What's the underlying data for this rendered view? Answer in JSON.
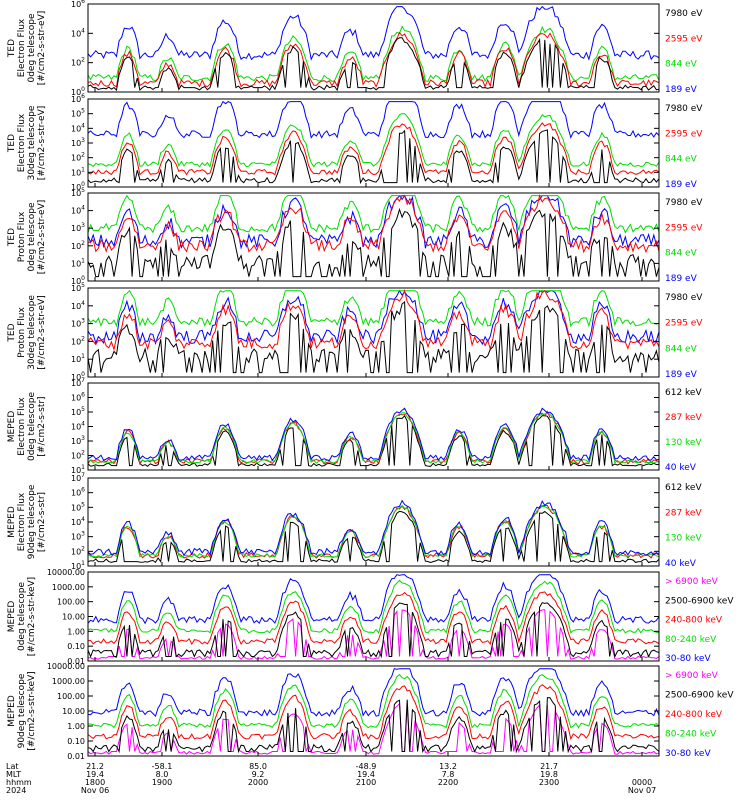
{
  "colors": {
    "blue": "#0000ff",
    "red": "#ff0000",
    "green": "#00dd00",
    "black": "#000000",
    "magenta": "#ff00ff",
    "axis": "#000000"
  },
  "chart_data": [
    {
      "type": "line",
      "ylabel_lines": [
        "TED",
        "Electron Flux",
        "0deg telescope",
        "[#/cm2-s-str-eV]"
      ],
      "yscale": "log",
      "ylim": [
        1,
        1000000
      ],
      "yticks": [
        "10^0",
        "10^2",
        "10^4",
        "10^6"
      ],
      "series": [
        {
          "name": "7980 eV",
          "color": "black"
        },
        {
          "name": "2595 eV",
          "color": "red"
        },
        {
          "name": "844 eV",
          "color": "green"
        },
        {
          "name": "189 eV",
          "color": "blue"
        }
      ]
    },
    {
      "type": "line",
      "ylabel_lines": [
        "TED",
        "Electron Flux",
        "30deg telescope",
        "[#/cm2-s-str-eV]"
      ],
      "yscale": "log",
      "ylim": [
        1,
        1000000
      ],
      "yticks": [
        "10^0",
        "10^1",
        "10^2",
        "10^3",
        "10^4",
        "10^5",
        "10^6"
      ],
      "series": [
        {
          "name": "7980 eV",
          "color": "black"
        },
        {
          "name": "2595 eV",
          "color": "red"
        },
        {
          "name": "844 eV",
          "color": "green"
        },
        {
          "name": "189 eV",
          "color": "blue"
        }
      ]
    },
    {
      "type": "line",
      "ylabel_lines": [
        "TED",
        "Proton Flux",
        "0deg telescope",
        "[#/cm2-s-str-eV]"
      ],
      "yscale": "log",
      "ylim": [
        1,
        100000
      ],
      "yticks": [
        "10^0",
        "10^1",
        "10^2",
        "10^3",
        "10^4",
        "10^5"
      ],
      "series": [
        {
          "name": "7980 eV",
          "color": "black"
        },
        {
          "name": "2595 eV",
          "color": "red"
        },
        {
          "name": "844 eV",
          "color": "green"
        },
        {
          "name": "189 eV",
          "color": "blue"
        }
      ]
    },
    {
      "type": "line",
      "ylabel_lines": [
        "TED",
        "Proton Flux",
        "30deg telescope",
        "[#/cm2-s-str-eV]"
      ],
      "yscale": "log",
      "ylim": [
        1,
        100000
      ],
      "yticks": [
        "10^0",
        "10^1",
        "10^2",
        "10^3",
        "10^4",
        "10^5"
      ],
      "series": [
        {
          "name": "7980 eV",
          "color": "black"
        },
        {
          "name": "2595 eV",
          "color": "red"
        },
        {
          "name": "844 eV",
          "color": "green"
        },
        {
          "name": "189 eV",
          "color": "blue"
        }
      ]
    },
    {
      "type": "line",
      "ylabel_lines": [
        "MEPED",
        "Electron Flux",
        "0deg telescope",
        "[#/cm2-s-str]"
      ],
      "yscale": "log",
      "ylim": [
        10,
        10000000
      ],
      "yticks": [
        "10^1",
        "10^2",
        "10^3",
        "10^4",
        "10^5",
        "10^6",
        "10^7"
      ],
      "series": [
        {
          "name": "612 keV",
          "color": "black"
        },
        {
          "name": "287 keV",
          "color": "red"
        },
        {
          "name": "130 keV",
          "color": "green"
        },
        {
          "name": "40 keV",
          "color": "blue"
        }
      ]
    },
    {
      "type": "line",
      "ylabel_lines": [
        "MEPED",
        "Electron Flux",
        "90deg telescope",
        "[#/cm2-s-str]"
      ],
      "yscale": "log",
      "ylim": [
        10,
        10000000
      ],
      "yticks": [
        "10^1",
        "10^2",
        "10^3",
        "10^4",
        "10^5",
        "10^6",
        "10^7"
      ],
      "series": [
        {
          "name": "612 keV",
          "color": "black"
        },
        {
          "name": "287 keV",
          "color": "red"
        },
        {
          "name": "130 keV",
          "color": "green"
        },
        {
          "name": "40 keV",
          "color": "blue"
        }
      ]
    },
    {
      "type": "line",
      "ylabel_lines": [
        "MEPED",
        "0deg telescope",
        "[#/cm2-s-str-keV]"
      ],
      "yscale": "log",
      "ylim": [
        0.01,
        10000
      ],
      "yticks": [
        "0.01",
        "0.10",
        "1.00",
        "10.00",
        "100.00",
        "1000.00",
        "10000.00"
      ],
      "series": [
        {
          "name": "> 6900 keV",
          "color": "magenta"
        },
        {
          "name": "2500-6900 keV",
          "color": "black"
        },
        {
          "name": "240-800 keV",
          "color": "red"
        },
        {
          "name": "80-240 keV",
          "color": "green"
        },
        {
          "name": "30-80 keV",
          "color": "blue"
        }
      ]
    },
    {
      "type": "line",
      "ylabel_lines": [
        "MEPED",
        "90deg telescope",
        "[#/cm2-s-str-keV]"
      ],
      "yscale": "log",
      "ylim": [
        0.01,
        10000
      ],
      "yticks": [
        "0.01",
        "0.10",
        "1.00",
        "10.00",
        "100.00",
        "1000.00",
        "10000.00"
      ],
      "series": [
        {
          "name": "> 6900 keV",
          "color": "magenta"
        },
        {
          "name": "2500-6900 keV",
          "color": "black"
        },
        {
          "name": "240-800 keV",
          "color": "red"
        },
        {
          "name": "80-240 keV",
          "color": "green"
        },
        {
          "name": "30-80 keV",
          "color": "blue"
        }
      ]
    }
  ],
  "x_axis": {
    "hhmm_ticks": [
      "1800",
      "1900",
      "2000",
      "2100",
      "2200",
      "2300",
      "0000"
    ],
    "row_labels": [
      "Lat",
      "MLT",
      "hhmm",
      "2024"
    ],
    "lat": [
      "21.2",
      "-58.1",
      "85.0",
      "-48.9",
      "13.2",
      "21.7"
    ],
    "mlt": [
      "19.4",
      "8.0",
      "9.2",
      "19.4",
      "7.8",
      "19.8"
    ],
    "date_left": "Nov 06",
    "date_right": "Nov 07"
  }
}
